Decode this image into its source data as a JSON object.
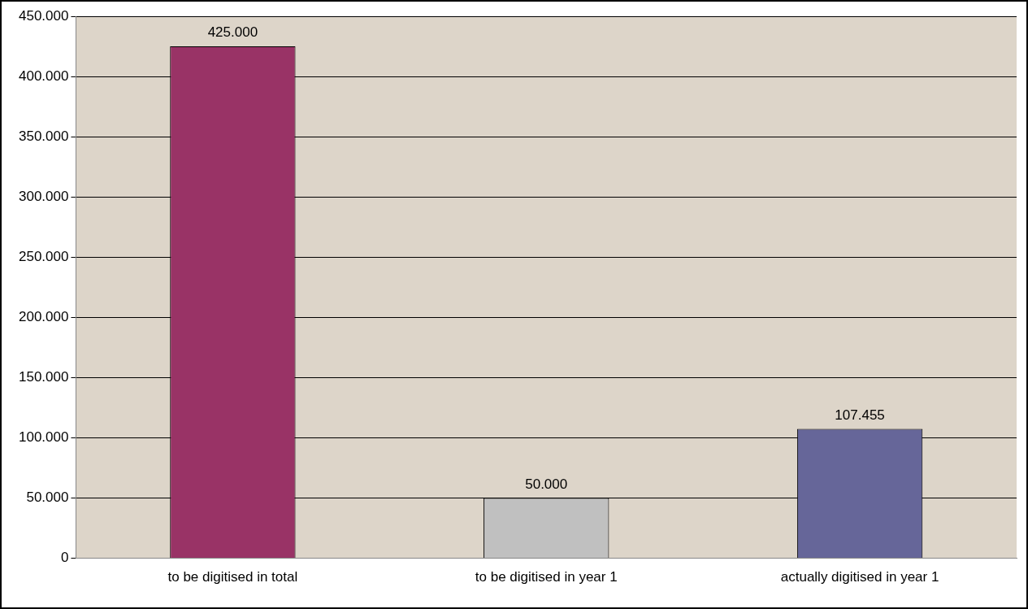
{
  "chart_data": {
    "type": "bar",
    "categories": [
      "to be digitised in total",
      "to be digitised in year 1",
      "actually digitised in year 1"
    ],
    "values": [
      425000,
      50000,
      107455
    ],
    "colors": [
      "#993366",
      "#c0c0c0",
      "#666699"
    ],
    "value_labels": [
      "425.000",
      "50.000",
      "107.455"
    ],
    "ylim": [
      0,
      450000
    ],
    "yticks": [
      {
        "value": 0,
        "label": "0"
      },
      {
        "value": 50000,
        "label": "50.000"
      },
      {
        "value": 100000,
        "label": "100.000"
      },
      {
        "value": 150000,
        "label": "150.000"
      },
      {
        "value": 200000,
        "label": "200.000"
      },
      {
        "value": 250000,
        "label": "250.000"
      },
      {
        "value": 300000,
        "label": "300.000"
      },
      {
        "value": 350000,
        "label": "350.000"
      },
      {
        "value": 400000,
        "label": "400.000"
      },
      {
        "value": 450000,
        "label": "450.000"
      }
    ],
    "grid": "y",
    "legend": false
  }
}
